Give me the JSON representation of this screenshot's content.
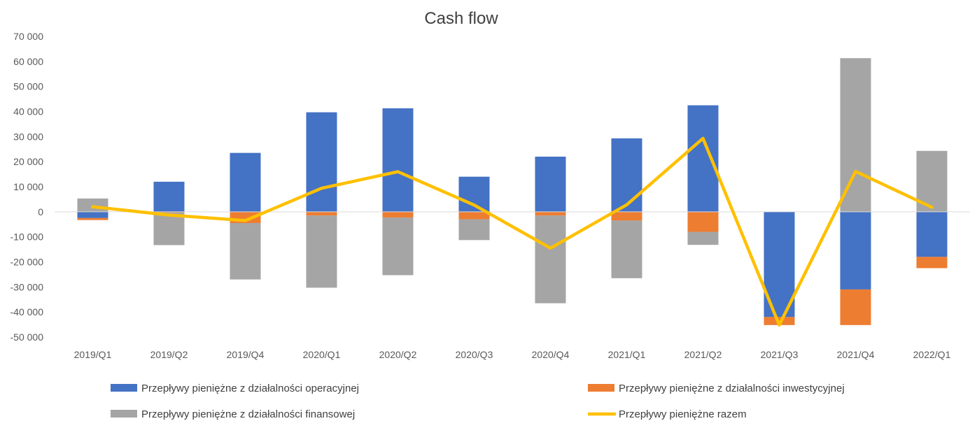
{
  "chart_data": {
    "type": "bar",
    "stacked": true,
    "title": "Cash flow",
    "categories": [
      "2019/Q1",
      "2019/Q2",
      "2019/Q4",
      "2020/Q1",
      "2020/Q2",
      "2020/Q3",
      "2020/Q4",
      "2021/Q1",
      "2021/Q2",
      "2021/Q3",
      "2021/Q4",
      "2022/Q1"
    ],
    "ylim": [
      -50000,
      70000
    ],
    "yticks": [
      70000,
      60000,
      50000,
      40000,
      30000,
      20000,
      10000,
      0,
      -10000,
      -20000,
      -30000,
      -40000,
      -50000
    ],
    "ytick_labels": [
      "70 000",
      "60 000",
      "50 000",
      "40 000",
      "30 000",
      "20 000",
      "10 000",
      "0",
      "-10 000",
      "-20 000",
      "-30 000",
      "-40 000",
      "-50 000"
    ],
    "grid": false,
    "legend_position": "bottom",
    "series": [
      {
        "name": "Przepływy pieniężne z działalności operacyjnej",
        "kind": "bar",
        "color": "#4472C4",
        "values": [
          -2500,
          12000,
          23500,
          39700,
          41300,
          14000,
          22000,
          29300,
          42500,
          -42000,
          -31000,
          -18000
        ]
      },
      {
        "name": "Przepływy pieniężne z działalności inwestycyjnej",
        "kind": "bar",
        "color": "#ED7D31",
        "values": [
          -800,
          -300,
          -4500,
          -1500,
          -2300,
          -3000,
          -1500,
          -3500,
          -8000,
          -3200,
          -14200,
          -4500
        ]
      },
      {
        "name": "Przepływy pieniężne z działalności finansowej",
        "kind": "bar",
        "color": "#A5A5A5",
        "values": [
          5300,
          -13000,
          -22500,
          -28800,
          -23000,
          -8300,
          -35000,
          -23000,
          -5200,
          0,
          61300,
          24300
        ]
      },
      {
        "name": "Przepływy pieniężne razem",
        "kind": "line",
        "color": "#FFC000",
        "values": [
          2000,
          -1300,
          -3500,
          9400,
          16000,
          2700,
          -14500,
          2800,
          29300,
          -45200,
          16100,
          1800
        ]
      }
    ]
  }
}
